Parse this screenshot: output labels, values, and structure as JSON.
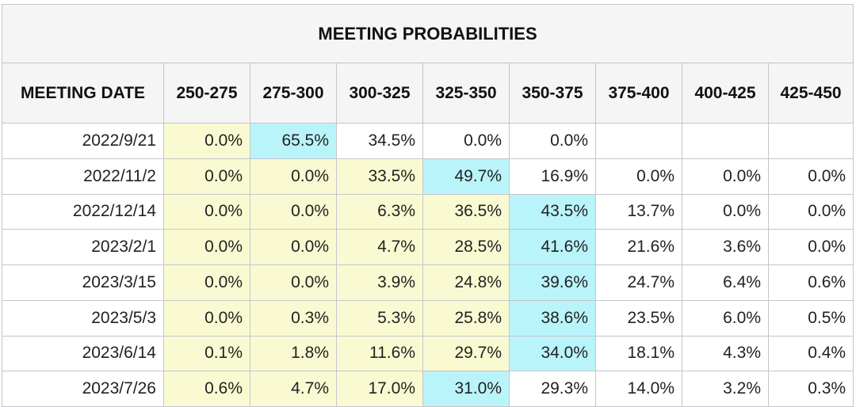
{
  "chart_data": {
    "type": "table",
    "title": "MEETING PROBABILITIES",
    "columns": [
      "MEETING DATE",
      "250-275",
      "275-300",
      "300-325",
      "325-350",
      "350-375",
      "375-400",
      "400-425",
      "425-450"
    ],
    "rows": [
      {
        "date": "2022/9/21",
        "values": [
          "0.0%",
          "65.5%",
          "34.5%",
          "0.0%",
          "0.0%",
          "",
          "",
          ""
        ],
        "styles": [
          "y",
          "c",
          "w",
          "w",
          "w",
          "w",
          "w",
          "w"
        ]
      },
      {
        "date": "2022/11/2",
        "values": [
          "0.0%",
          "0.0%",
          "33.5%",
          "49.7%",
          "16.9%",
          "0.0%",
          "0.0%",
          "0.0%"
        ],
        "styles": [
          "y",
          "y",
          "y",
          "c",
          "w",
          "w",
          "w",
          "w"
        ]
      },
      {
        "date": "2022/12/14",
        "values": [
          "0.0%",
          "0.0%",
          "6.3%",
          "36.5%",
          "43.5%",
          "13.7%",
          "0.0%",
          "0.0%"
        ],
        "styles": [
          "y",
          "y",
          "y",
          "y",
          "c",
          "w",
          "w",
          "w"
        ]
      },
      {
        "date": "2023/2/1",
        "values": [
          "0.0%",
          "0.0%",
          "4.7%",
          "28.5%",
          "41.6%",
          "21.6%",
          "3.6%",
          "0.0%"
        ],
        "styles": [
          "y",
          "y",
          "y",
          "y",
          "c",
          "w",
          "w",
          "w"
        ]
      },
      {
        "date": "2023/3/15",
        "values": [
          "0.0%",
          "0.0%",
          "3.9%",
          "24.8%",
          "39.6%",
          "24.7%",
          "6.4%",
          "0.6%"
        ],
        "styles": [
          "y",
          "y",
          "y",
          "y",
          "c",
          "w",
          "w",
          "w"
        ]
      },
      {
        "date": "2023/5/3",
        "values": [
          "0.0%",
          "0.3%",
          "5.3%",
          "25.8%",
          "38.6%",
          "23.5%",
          "6.0%",
          "0.5%"
        ],
        "styles": [
          "y",
          "y",
          "y",
          "y",
          "c",
          "w",
          "w",
          "w"
        ]
      },
      {
        "date": "2023/6/14",
        "values": [
          "0.1%",
          "1.8%",
          "11.6%",
          "29.7%",
          "34.0%",
          "18.1%",
          "4.3%",
          "0.4%"
        ],
        "styles": [
          "y",
          "y",
          "y",
          "y",
          "c",
          "w",
          "w",
          "w"
        ]
      },
      {
        "date": "2023/7/26",
        "values": [
          "0.6%",
          "4.7%",
          "17.0%",
          "31.0%",
          "29.3%",
          "14.0%",
          "3.2%",
          "0.3%"
        ],
        "styles": [
          "y",
          "y",
          "y",
          "c",
          "w",
          "w",
          "w",
          "w"
        ]
      }
    ],
    "colors": {
      "below_target": "#fafad2",
      "most_likely": "#b9f4fa",
      "default": "#ffffff",
      "header": "#f5f5f5"
    }
  }
}
